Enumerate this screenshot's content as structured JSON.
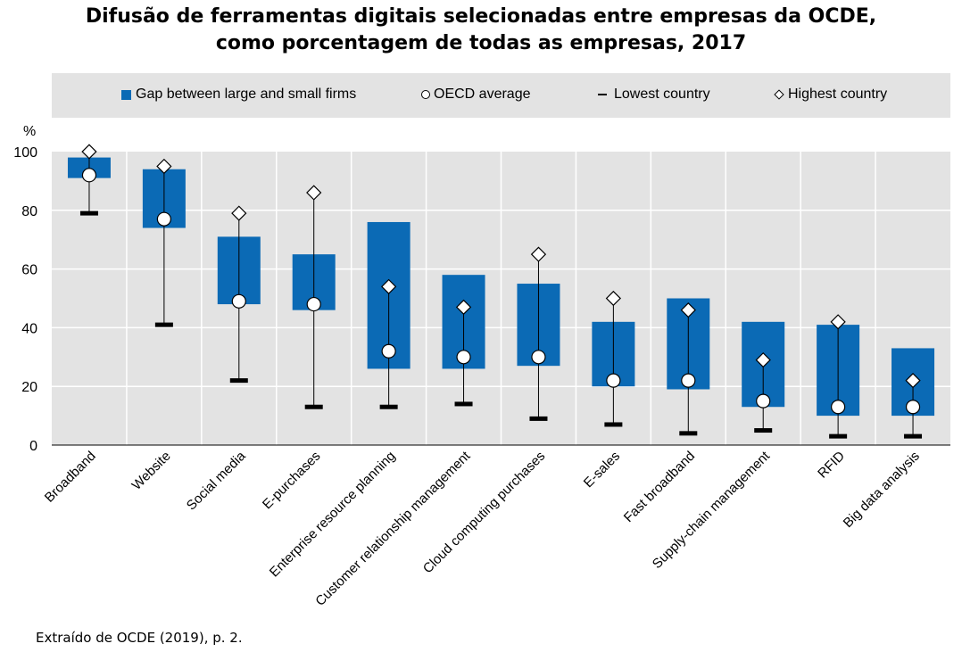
{
  "title_line1": "Difusão de ferramentas digitais selecionadas entre empresas da OCDE,",
  "title_line2": "como porcentagem de todas as empresas, 2017",
  "legend": {
    "gap": "Gap between large and small firms",
    "average": "OECD average",
    "lowest": "Lowest country",
    "highest": "Highest country"
  },
  "footer": "Extraído de OCDE (2019), p. 2.",
  "colors": {
    "bar": "#0b6ab5",
    "plot_bg": "#e3e3e3",
    "grid": "#ffffff"
  },
  "chart_data": {
    "type": "bar",
    "ylabel": "%",
    "ylim": [
      0,
      100
    ],
    "yticks": [
      0,
      20,
      40,
      60,
      80,
      100
    ],
    "categories": [
      "Broadband",
      "Website",
      "Social media",
      "E-purchases",
      "Enterprise resource planning",
      "Customer relationship management",
      "Cloud computing purchases",
      "E-sales",
      "Fast broadband",
      "Supply-chain management",
      "RFID",
      "Big data analysis"
    ],
    "series": [
      {
        "name": "Gap between large and small firms",
        "low": [
          91,
          74,
          48,
          46,
          26,
          26,
          27,
          20,
          19,
          13,
          10,
          10
        ],
        "high": [
          98,
          94,
          71,
          65,
          76,
          58,
          55,
          42,
          50,
          42,
          41,
          33
        ]
      },
      {
        "name": "OECD average",
        "values": [
          92,
          77,
          49,
          48,
          32,
          30,
          30,
          22,
          22,
          15,
          13,
          13
        ]
      },
      {
        "name": "Lowest country",
        "values": [
          79,
          41,
          22,
          13,
          13,
          14,
          9,
          7,
          4,
          5,
          3,
          3
        ]
      },
      {
        "name": "Highest country",
        "values": [
          100,
          95,
          79,
          86,
          54,
          47,
          65,
          50,
          46,
          29,
          42,
          22
        ]
      }
    ],
    "grid": true,
    "legend_position": "top"
  }
}
